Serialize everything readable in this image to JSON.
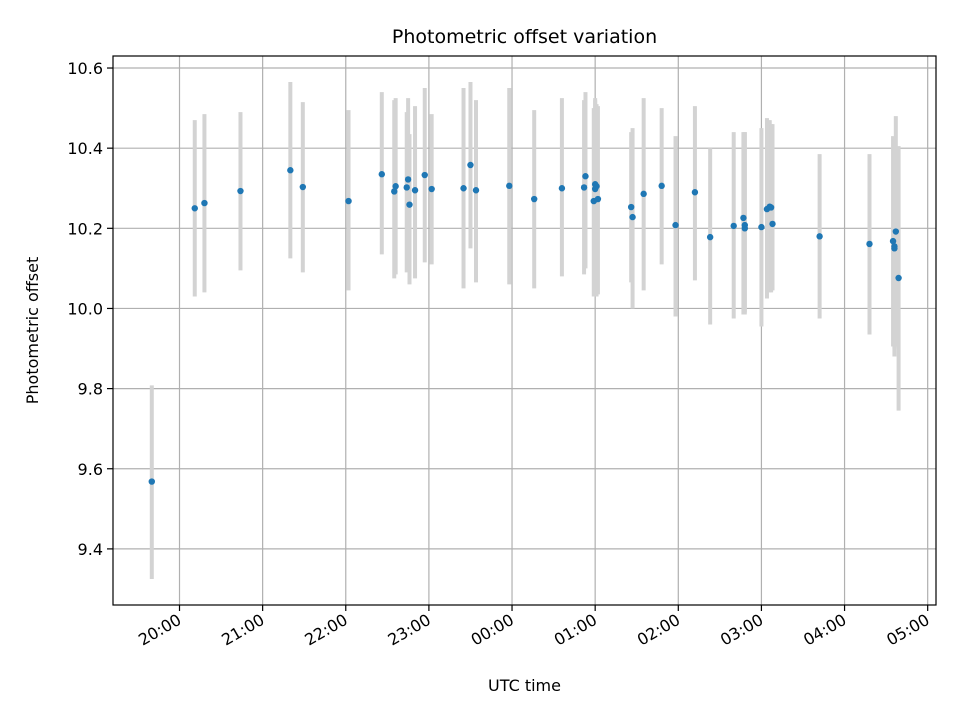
{
  "chart_data": {
    "type": "scatter",
    "title": "Photometric offset variation",
    "xlabel": "UTC time",
    "ylabel": "Photometric offset",
    "grid": true,
    "ylim": [
      9.26,
      10.63
    ],
    "xlim": [
      "19:12",
      "05:06"
    ],
    "ylim_ticks": [
      9.4,
      9.6,
      9.8,
      10.0,
      10.2,
      10.4,
      10.6
    ],
    "ytick_labels": [
      "9.4",
      "9.6",
      "9.8",
      "10.0",
      "10.2",
      "10.4",
      "10.6"
    ],
    "xticks": [
      "20:00",
      "21:00",
      "22:00",
      "23:00",
      "00:00",
      "01:00",
      "02:00",
      "03:00",
      "04:00",
      "05:00"
    ],
    "colors": {
      "point": "#1f77b4",
      "errorbar": "#d3d3d3",
      "grid": "#b0b0b0"
    },
    "series": [
      {
        "x": [
          "19:40",
          "20:11",
          "20:18",
          "20:44",
          "21:20",
          "21:29",
          "22:02",
          "22:26",
          "22:35",
          "22:36",
          "22:44",
          "22:45",
          "22:46",
          "22:50",
          "22:57",
          "23:02",
          "23:25",
          "23:30",
          "23:34",
          "23:58",
          "00:16",
          "00:36",
          "00:52",
          "00:53",
          "00:59",
          "01:00",
          "01:00",
          "01:01",
          "01:02",
          "01:26",
          "01:27",
          "01:35",
          "01:48",
          "01:58",
          "02:12",
          "02:23",
          "02:40",
          "02:47",
          "02:48",
          "02:48",
          "03:00",
          "03:04",
          "03:06",
          "03:07",
          "03:08",
          "03:42",
          "04:18",
          "04:35",
          "04:36",
          "04:36",
          "04:37",
          "04:39"
        ],
        "y": [
          9.568,
          10.25,
          10.263,
          10.293,
          10.345,
          10.303,
          10.268,
          10.335,
          10.292,
          10.305,
          10.302,
          10.322,
          10.259,
          10.295,
          10.333,
          10.298,
          10.3,
          10.358,
          10.295,
          10.306,
          10.273,
          10.3,
          10.302,
          10.33,
          10.268,
          10.298,
          10.31,
          10.305,
          10.273,
          10.253,
          10.228,
          10.286,
          10.306,
          10.208,
          10.29,
          10.178,
          10.206,
          10.226,
          10.208,
          10.2,
          10.203,
          10.248,
          10.254,
          10.252,
          10.211,
          10.18,
          10.161,
          10.168,
          10.155,
          10.15,
          10.192,
          10.076
        ],
        "err_low": [
          9.325,
          10.03,
          10.04,
          10.095,
          10.125,
          10.09,
          10.045,
          10.135,
          10.075,
          10.085,
          10.09,
          10.12,
          10.06,
          10.075,
          10.115,
          10.11,
          10.05,
          10.15,
          10.065,
          10.06,
          10.05,
          10.08,
          10.085,
          10.1,
          10.03,
          10.04,
          10.045,
          10.03,
          10.035,
          10.065,
          10.0,
          10.045,
          10.11,
          9.98,
          10.07,
          9.96,
          9.975,
          9.985,
          9.985,
          9.99,
          9.955,
          10.025,
          10.04,
          10.04,
          10.045,
          9.975,
          9.935,
          9.905,
          9.88,
          9.9,
          9.905,
          9.745
        ],
        "err_high": [
          9.808,
          10.47,
          10.485,
          10.49,
          10.565,
          10.515,
          10.495,
          10.54,
          10.52,
          10.525,
          10.49,
          10.525,
          10.435,
          10.505,
          10.55,
          10.485,
          10.55,
          10.565,
          10.52,
          10.55,
          10.495,
          10.525,
          10.52,
          10.54,
          10.5,
          10.52,
          10.525,
          10.51,
          10.505,
          10.44,
          10.45,
          10.525,
          10.5,
          10.43,
          10.505,
          10.4,
          10.44,
          10.44,
          10.44,
          10.44,
          10.45,
          10.475,
          10.47,
          10.46,
          10.46,
          10.385,
          10.385,
          10.43,
          10.425,
          10.41,
          10.48,
          10.405
        ]
      }
    ]
  }
}
